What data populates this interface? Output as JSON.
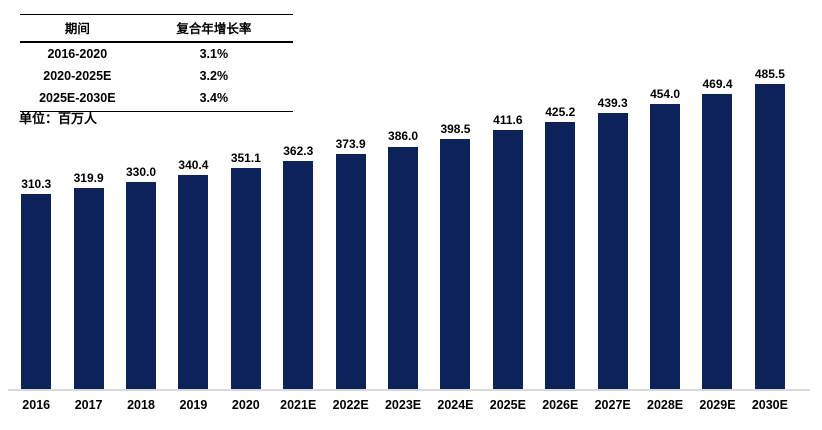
{
  "unit_label": "单位：百万人",
  "cagr_table": {
    "headers": [
      "期间",
      "复合年增长率"
    ],
    "rows": [
      {
        "period": "2016-2020",
        "cagr": "3.1%"
      },
      {
        "period": "2020-2025E",
        "cagr": "3.2%"
      },
      {
        "period": "2025E-2030E",
        "cagr": "3.4%"
      }
    ]
  },
  "chart_data": {
    "type": "bar",
    "categories": [
      "2016",
      "2017",
      "2018",
      "2019",
      "2020",
      "2021E",
      "2022E",
      "2023E",
      "2024E",
      "2025E",
      "2026E",
      "2027E",
      "2028E",
      "2029E",
      "2030E"
    ],
    "values": [
      310.3,
      319.9,
      330.0,
      340.4,
      351.1,
      362.3,
      373.9,
      386.0,
      398.5,
      411.6,
      425.2,
      439.3,
      454.0,
      469.4,
      485.5
    ],
    "title": "",
    "xlabel": "",
    "ylabel": "单位：百万人",
    "ylim": [
      0,
      500
    ],
    "grid": false,
    "legend": "none",
    "data_labels": "above bars, one decimal"
  },
  "colors": {
    "bar": "#0d2259",
    "axis_line": "#d9d9d9",
    "text": "#000000"
  }
}
